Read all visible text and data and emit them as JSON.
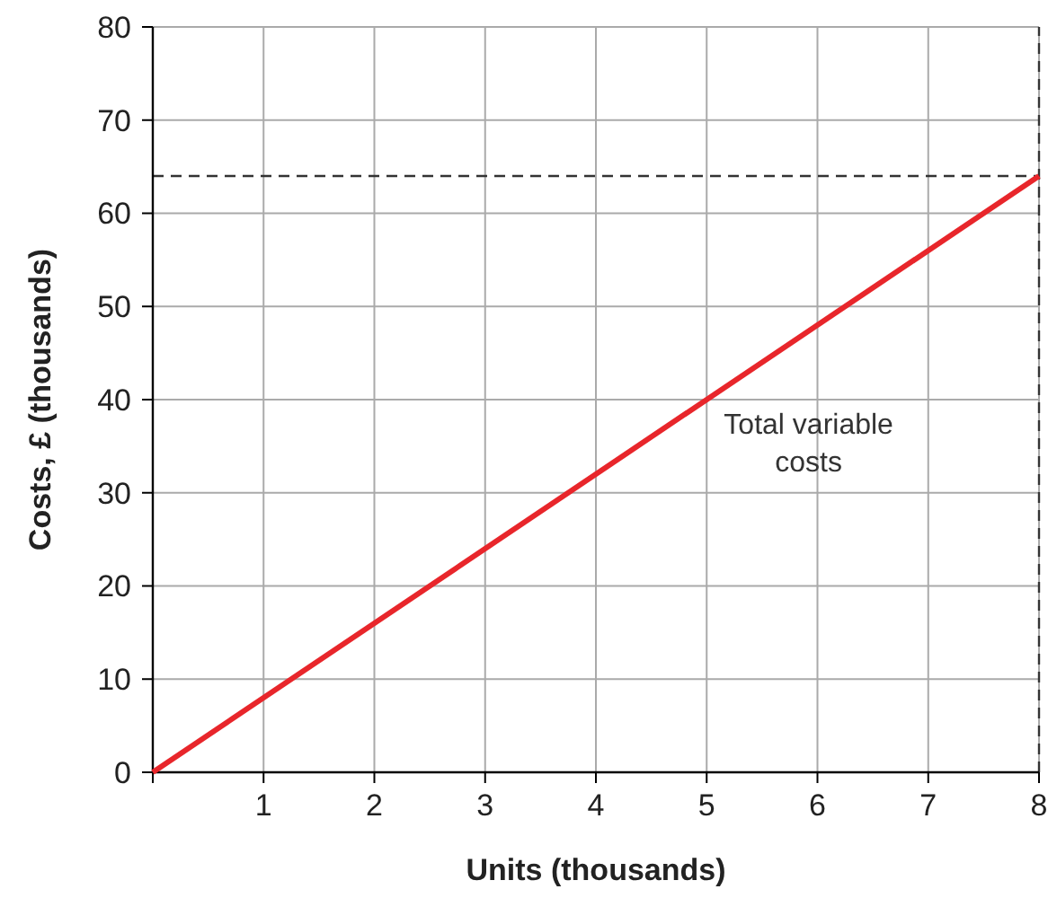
{
  "chart_data": {
    "type": "line",
    "xlabel": "Units (thousands)",
    "ylabel": "Costs, £ (thousands)",
    "x": [
      0,
      8
    ],
    "series": [
      {
        "color": "#e8262b",
        "values": [
          0,
          64
        ]
      }
    ],
    "xlim": [
      0,
      8
    ],
    "ylim": [
      0,
      80
    ],
    "xticks": [
      {
        "value": 0,
        "label": null
      },
      1,
      2,
      3,
      4,
      5,
      6,
      7,
      8
    ],
    "yticks": [
      0,
      10,
      20,
      30,
      40,
      50,
      60,
      70,
      80
    ],
    "grid": true,
    "marker": "none",
    "line_style": "solid",
    "ref_lines": [
      {
        "axis": "y",
        "value": 64,
        "color": "#333333",
        "line_style": "dashed"
      },
      {
        "axis": "x",
        "value": 8,
        "color": "#333333",
        "line_style": "dashed"
      }
    ],
    "annotations": [
      "Total variable costs"
    ]
  }
}
